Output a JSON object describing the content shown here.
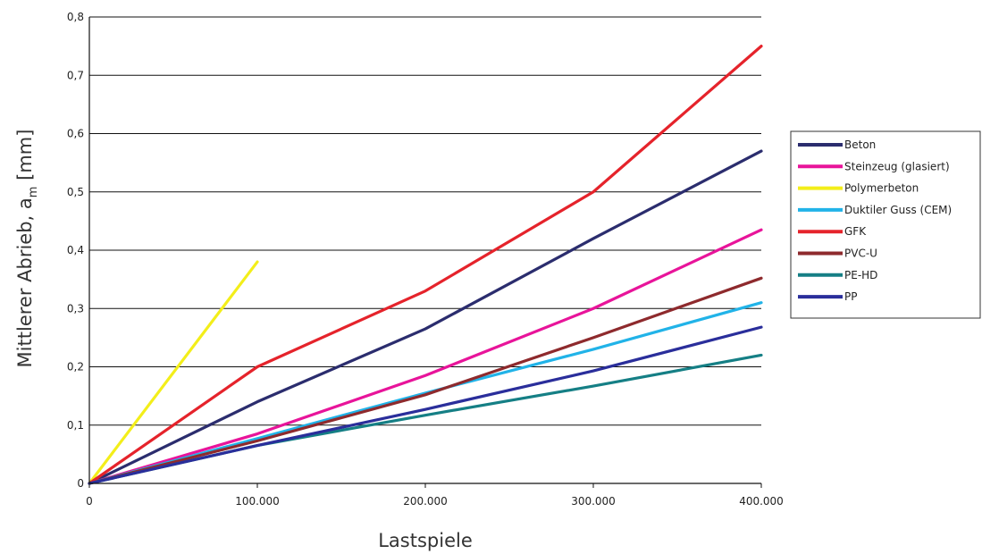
{
  "chart_data": {
    "type": "line",
    "title": "",
    "xlabel": "Lastspiele",
    "ylabel": "Mittlerer Abrieb, a",
    "ylabel_subscript": "m",
    "ylabel_unit": " [mm]",
    "xlim": [
      0,
      400000
    ],
    "ylim": [
      0,
      0.8
    ],
    "x_ticks": [
      0,
      100000,
      200000,
      300000,
      400000
    ],
    "x_tick_labels": [
      "0",
      "100.000",
      "200.000",
      "300.000",
      "400.000"
    ],
    "y_ticks": [
      0,
      0.1,
      0.2,
      0.3,
      0.4,
      0.5,
      0.6,
      0.7,
      0.8
    ],
    "y_tick_labels": [
      "0",
      "0,1",
      "0,2",
      "0,3",
      "0,4",
      "0,5",
      "0,6",
      "0,7",
      "0,8"
    ],
    "grid": "horizontal",
    "legend_position": "right",
    "series": [
      {
        "name": "Beton",
        "color": "#2b2d6e",
        "points": [
          [
            0,
            0
          ],
          [
            100000,
            0.14
          ],
          [
            200000,
            0.265
          ],
          [
            300000,
            0.42
          ],
          [
            400000,
            0.57
          ]
        ]
      },
      {
        "name": "Steinzeug (glasiert)",
        "color": "#e8149a",
        "points": [
          [
            0,
            0
          ],
          [
            100000,
            0.085
          ],
          [
            200000,
            0.185
          ],
          [
            300000,
            0.3
          ],
          [
            400000,
            0.435
          ]
        ]
      },
      {
        "name": "Polymerbeton",
        "color": "#f3ee1a",
        "points": [
          [
            0,
            0
          ],
          [
            100000,
            0.38
          ]
        ]
      },
      {
        "name": "Duktiler Guss (CEM)",
        "color": "#21b3e8",
        "points": [
          [
            0,
            0
          ],
          [
            100000,
            0.077
          ],
          [
            200000,
            0.155
          ],
          [
            300000,
            0.23
          ],
          [
            400000,
            0.31
          ]
        ]
      },
      {
        "name": "GFK",
        "color": "#e5232b",
        "points": [
          [
            0,
            0
          ],
          [
            100000,
            0.2
          ],
          [
            200000,
            0.33
          ],
          [
            300000,
            0.5
          ],
          [
            400000,
            0.75
          ]
        ]
      },
      {
        "name": "PVC-U",
        "color": "#8e2a2d",
        "points": [
          [
            0,
            0
          ],
          [
            100000,
            0.073
          ],
          [
            200000,
            0.152
          ],
          [
            300000,
            0.25
          ],
          [
            400000,
            0.352
          ]
        ]
      },
      {
        "name": "PE-HD",
        "color": "#157f85",
        "points": [
          [
            0,
            0
          ],
          [
            100000,
            0.065
          ],
          [
            200000,
            0.117
          ],
          [
            300000,
            0.167
          ],
          [
            400000,
            0.22
          ]
        ]
      },
      {
        "name": "PP",
        "color": "#2a2e9b",
        "points": [
          [
            0,
            0
          ],
          [
            100000,
            0.065
          ],
          [
            200000,
            0.127
          ],
          [
            300000,
            0.193
          ],
          [
            400000,
            0.268
          ]
        ]
      }
    ]
  }
}
